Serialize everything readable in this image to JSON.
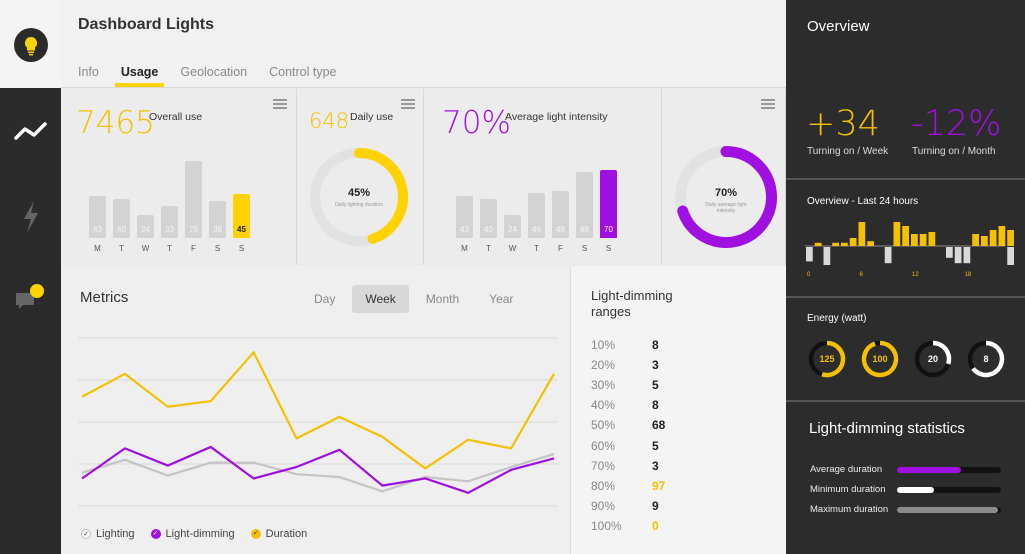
{
  "header": {
    "title": "Dashboard Lights",
    "tabs": [
      {
        "label": "Info"
      },
      {
        "label": "Usage"
      },
      {
        "label": "Geolocation"
      },
      {
        "label": "Control type"
      }
    ]
  },
  "nav": {
    "items": [
      "bulb-icon",
      "trend-icon",
      "bolt-icon",
      "chat-icon"
    ]
  },
  "cards": {
    "overall": {
      "value": "7465",
      "caption": "Overall use",
      "bars": {
        "days": [
          "M",
          "T",
          "W",
          "T",
          "F",
          "S",
          "S"
        ],
        "values": [
          43,
          40,
          24,
          33,
          79,
          38,
          45
        ]
      }
    },
    "daily": {
      "value": "648",
      "caption": "Daily use",
      "donut_value": "45%",
      "donut_caption": "Daily lighting duration",
      "fraction": 0.45
    },
    "intensity": {
      "value": "70%",
      "caption": "Average light intensity",
      "bars": {
        "days": [
          "M",
          "T",
          "W",
          "T",
          "F",
          "S",
          "S"
        ],
        "values": [
          43,
          40,
          24,
          46,
          48,
          68,
          70
        ]
      }
    },
    "intensity_donut": {
      "donut_value": "70%",
      "donut_caption": "Daily average light intensity",
      "fraction": 0.7
    }
  },
  "metrics": {
    "title": "Metrics",
    "periods": [
      "Day",
      "Week",
      "Month",
      "Year"
    ],
    "active_period": "Week",
    "legend": [
      {
        "label": "Lighting",
        "color": "#c4c4c4"
      },
      {
        "label": "Light-dimming",
        "color": "#a010e0"
      },
      {
        "label": "Duration",
        "color": "#f5c000"
      }
    ],
    "chart_data": {
      "type": "line",
      "series": [
        {
          "name": "Duration",
          "values": [
            69,
            85,
            62,
            66,
            100,
            40,
            55,
            41,
            19,
            39,
            33,
            85
          ]
        },
        {
          "name": "Lighting",
          "values": [
            16,
            25,
            14,
            23,
            23,
            15,
            13,
            3,
            13,
            10,
            20,
            29
          ]
        },
        {
          "name": "Light-dimming",
          "values": [
            12,
            33,
            21,
            34,
            12,
            20,
            32,
            7,
            12,
            2,
            18,
            26
          ]
        }
      ],
      "ylim": [
        -10,
        110
      ]
    }
  },
  "ranges": {
    "title": "Light-dimming ranges",
    "rows": [
      {
        "pct": "10%",
        "count": "8"
      },
      {
        "pct": "20%",
        "count": "3"
      },
      {
        "pct": "30%",
        "count": "5"
      },
      {
        "pct": "40%",
        "count": "8"
      },
      {
        "pct": "50%",
        "count": "68"
      },
      {
        "pct": "60%",
        "count": "5"
      },
      {
        "pct": "70%",
        "count": "3"
      },
      {
        "pct": "80%",
        "count": "97"
      },
      {
        "pct": "90%",
        "count": "9"
      },
      {
        "pct": "100%",
        "count": "0"
      }
    ]
  },
  "overview": {
    "title": "Overview",
    "stat1": {
      "value": "+34",
      "caption": "Turning on / Week"
    },
    "stat2": {
      "value": "-12%",
      "caption": "Turning on / Month"
    }
  },
  "last24": {
    "title": "Overview - Last 24 hours",
    "axis_labels": [
      "0",
      "6",
      "12",
      "18"
    ],
    "up": [
      0,
      0.08,
      0,
      0.08,
      0.08,
      0.2,
      0.6,
      0.12,
      0,
      0,
      0.6,
      0.5,
      0.3,
      0.3,
      0.35,
      0,
      0,
      0,
      0,
      0.3,
      0.25,
      0.4,
      0.5,
      0.4
    ],
    "down": [
      0.4,
      0,
      0.5,
      0,
      0,
      0,
      0,
      0,
      0,
      0.45,
      0,
      0,
      0,
      0,
      0,
      0,
      0.3,
      0.45,
      0.45,
      0,
      0,
      0,
      0,
      0.5
    ]
  },
  "energy": {
    "title": "Energy (watt)",
    "rings": [
      {
        "value": "125",
        "fraction": 0.55,
        "color": "#f5c000"
      },
      {
        "value": "100",
        "fraction": 0.95,
        "color": "#f5c000"
      },
      {
        "value": "20",
        "fraction": 0.3,
        "color": "#ffffff"
      },
      {
        "value": "8",
        "fraction": 0.65,
        "color": "#ffffff"
      }
    ]
  },
  "stats": {
    "title": "Light-dimming statistics",
    "rows": [
      {
        "label": "Average duration",
        "fraction": 0.62,
        "color": "#a010e0"
      },
      {
        "label": "Minimum duration",
        "fraction": 0.36,
        "color": "#ffffff"
      },
      {
        "label": "Maximum duration",
        "fraction": 0.97,
        "color": "#8a8a8a"
      }
    ]
  }
}
